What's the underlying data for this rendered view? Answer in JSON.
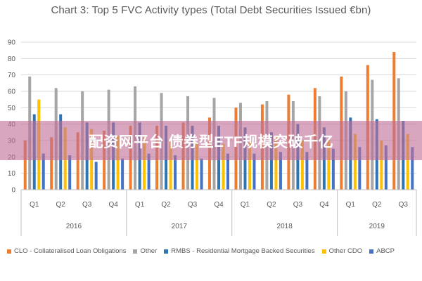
{
  "chart_data": {
    "type": "bar",
    "title": "Chart 3: Top 5 FVC Activity types (Total Debt Securities Issued €bn)",
    "categories": [
      "Q1",
      "Q2",
      "Q3",
      "Q4",
      "Q1",
      "Q2",
      "Q3",
      "Q4",
      "Q1",
      "Q2",
      "Q3",
      "Q4",
      "Q1",
      "Q2",
      "Q3"
    ],
    "groups": [
      {
        "label": "2016",
        "count": 4
      },
      {
        "label": "2017",
        "count": 4
      },
      {
        "label": "2018",
        "count": 4
      },
      {
        "label": "2019",
        "count": 3
      }
    ],
    "ylim": [
      0,
      90
    ],
    "yticks": [
      0,
      10,
      20,
      30,
      40,
      50,
      60,
      70,
      80,
      90
    ],
    "grid": true,
    "legend_position": "bottom",
    "series": [
      {
        "name": "CLO - Collateralised Loan Obligations",
        "color": "#ED7D31",
        "values": [
          30,
          32,
          35,
          36,
          39,
          39,
          41,
          44,
          50,
          52,
          58,
          62,
          69,
          76,
          84
        ]
      },
      {
        "name": "Other",
        "color": "#A5A5A5",
        "values": [
          69,
          62,
          60,
          61,
          63,
          59,
          57,
          56,
          53,
          54,
          54,
          57,
          60,
          67,
          68
        ]
      },
      {
        "name": "RMBS - Residential Mortgage Backed Securities",
        "color": "#2E75B6",
        "values": [
          46,
          46,
          41,
          41,
          41,
          39,
          39,
          39,
          38,
          35,
          40,
          38,
          44,
          43,
          42
        ]
      },
      {
        "name": "Other CDO",
        "color": "#FFC000",
        "values": [
          55,
          38,
          37,
          33,
          32,
          30,
          29,
          28,
          29,
          33,
          30,
          31,
          34,
          30,
          34
        ]
      },
      {
        "name": "ABCP",
        "color": "#4472C4",
        "values": [
          22,
          21,
          17,
          19,
          22,
          21,
          19,
          22,
          22,
          23,
          23,
          25,
          26,
          27,
          26
        ]
      }
    ]
  },
  "overlay": {
    "text": "配资网平台 债券型ETF规模突破千亿",
    "color": "#C07096"
  }
}
